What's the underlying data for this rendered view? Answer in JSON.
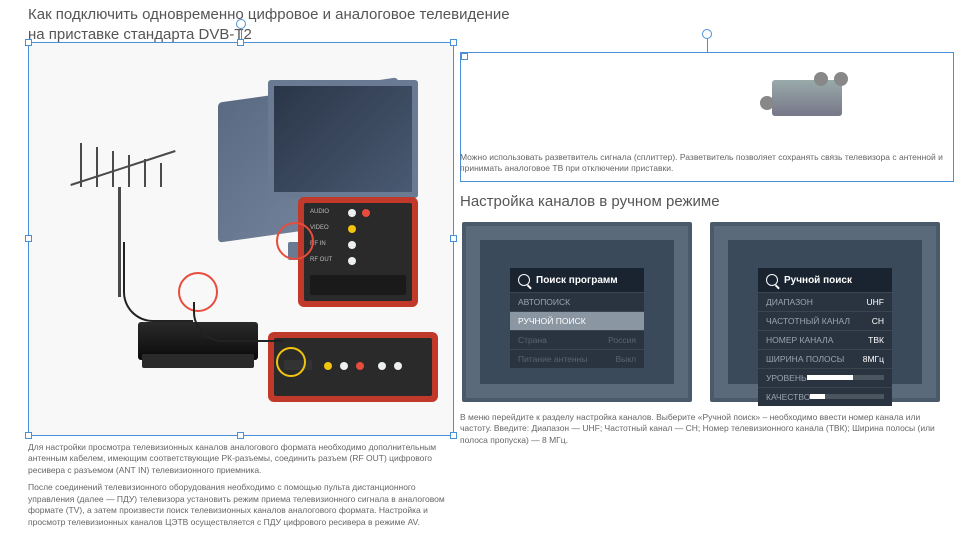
{
  "title": "Как подключить одновременно цифровое и аналоговое телевидение\nна приставке стандарта DVB-T2",
  "left_caption_1": "Для настройки просмотра телевизионных каналов аналогового формата необходимо дополнительным антенным кабелем, имеющим соответствующие РК-разъемы, соединить разъем (RF OUT) цифрового ресивера с разъемом (ANT IN) телевизионного приемника.",
  "left_caption_2": "После соединений телевизионного оборудования необходимо с помощью пульта дистанционного управления (далее — ПДУ) телевизора установить режим приема телевизионного сигнала в аналоговом формате (TV), а затем произвести поиск телевизионных каналов аналогового формата. Настройка и просмотр телевизионных каналов ЦЭТВ осуществляется с ПДУ цифрового ресивера в режиме AV.",
  "splitter_caption": "Можно использовать разветвитель сигнала (сплиттер). Разветвитель позволяет сохранять связь телевизора с антенной и принимать аналоговое ТВ при отключении приставки.",
  "section2_title": "Настройка каналов в ручном режиме",
  "menu1": {
    "header": "Поиск программ",
    "rows": [
      {
        "label": "АВТОПОИСК",
        "value": "",
        "cls": ""
      },
      {
        "label": "РУЧНОЙ ПОИСК",
        "value": "",
        "cls": "active"
      },
      {
        "label": "Страна",
        "value": "Россия",
        "cls": "dim"
      },
      {
        "label": "Питание антенны",
        "value": "Выкл",
        "cls": "dim"
      }
    ]
  },
  "menu2": {
    "header": "Ручной поиск",
    "rows": [
      {
        "label": "ДИАПАЗОН",
        "value": "UHF",
        "cls": ""
      },
      {
        "label": "ЧАСТОТНЫЙ КАНАЛ",
        "value": "CH",
        "cls": ""
      },
      {
        "label": "НОМЕР КАНАЛА",
        "value": "ТВК",
        "cls": ""
      },
      {
        "label": "ШИРИНА ПОЛОСЫ",
        "value": "8МГц",
        "cls": ""
      }
    ],
    "level_label": "УРОВЕНЬ",
    "quality_label": "КАЧЕСТВО",
    "level_pct": 60,
    "quality_pct": 20
  },
  "right_caption_2": "В меню перейдите к разделу настройка каналов. Выберите «Ручной поиск» – необходимо ввести номер канала или частоту. Введите: Диапазон — UHF; Частотный канал — CH; Номер телевизионного канала (ТВК); Ширина полосы (или полоса пропуска) — 8 МГц.",
  "port_labels": [
    "AUDIO",
    "VIDEO",
    "RF IN",
    "RF OUT"
  ],
  "colors": {
    "accent_red": "#c0392b",
    "ring_red": "#e74c3c",
    "ring_yellow": "#f1c40f",
    "tv_dark": "#3a4a5a",
    "selection": "#4a90d9"
  }
}
